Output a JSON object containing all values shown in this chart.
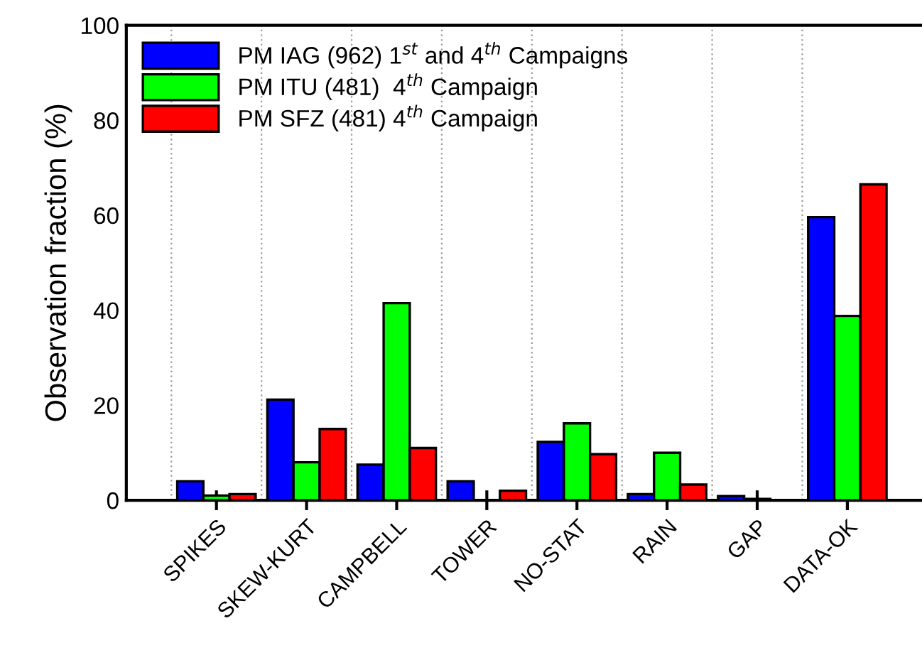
{
  "chart_data": {
    "type": "bar",
    "ylabel": "Observation fraction (%)",
    "categories": [
      "SPIKES",
      "SKEW-KURT",
      "CAMPBELL",
      "TOWER",
      "NO-STAT",
      "RAIN",
      "GAP",
      "DATA-OK"
    ],
    "series": [
      {
        "name": "PM IAG (962) 1$^{st}$ and 4$^{th}$ Campaigns",
        "color": "#0000ff",
        "values": [
          4.0,
          21.2,
          7.5,
          4.0,
          12.3,
          1.3,
          0.9,
          59.6
        ]
      },
      {
        "name": "PM ITU (481)  4$^{th}$ Campaign",
        "color": "#00ff00",
        "values": [
          1.0,
          8.0,
          41.5,
          0,
          16.2,
          10.0,
          0.3,
          38.8
        ]
      },
      {
        "name": "PM SFZ (481) 4$^{th}$ Campaign",
        "color": "#ff0000",
        "values": [
          1.3,
          15.0,
          11.0,
          2.0,
          9.7,
          3.3,
          0,
          66.5
        ]
      }
    ],
    "ylim": [
      0,
      100
    ],
    "yticks": [
      0,
      20,
      40,
      60,
      80,
      100
    ],
    "grid": "x",
    "legend": "top left"
  }
}
